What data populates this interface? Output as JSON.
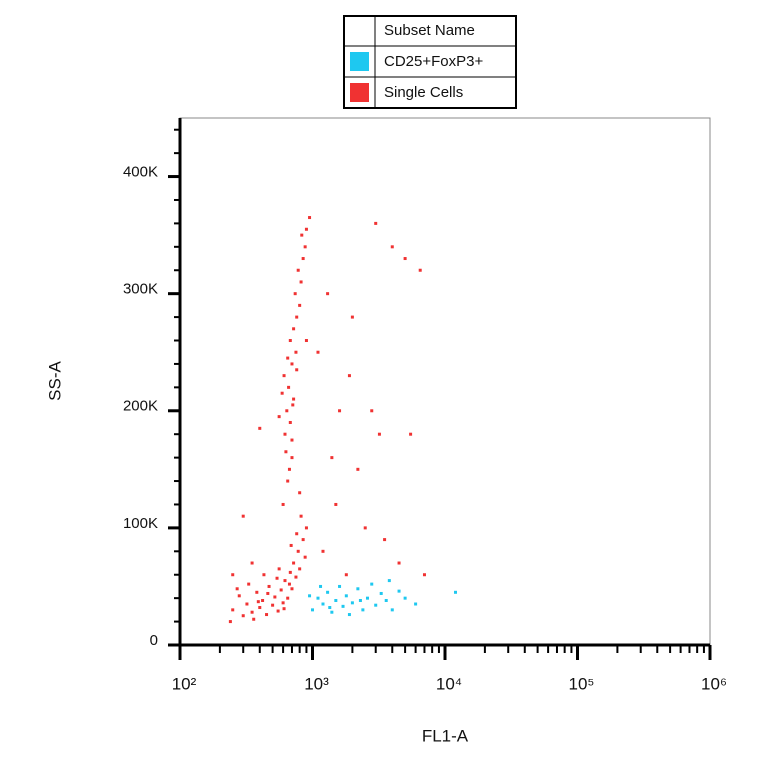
{
  "chart_data": {
    "type": "scatter",
    "legend_title": "Subset Name",
    "x_label": "FL1-A",
    "y_label": "SS-A",
    "x_log": true,
    "xlim": [
      100,
      1000000
    ],
    "ylim": [
      0,
      450000
    ],
    "xticks": [
      {
        "value": 100,
        "label": "10²"
      },
      {
        "value": 1000,
        "label": "10³"
      },
      {
        "value": 10000,
        "label": "10⁴"
      },
      {
        "value": 100000,
        "label": "10⁵"
      },
      {
        "value": 1000000,
        "label": "10⁶"
      }
    ],
    "xminorticks": [
      200,
      300,
      400,
      500,
      600,
      700,
      800,
      900,
      2000,
      3000,
      4000,
      5000,
      6000,
      7000,
      8000,
      9000,
      20000,
      30000,
      40000,
      50000,
      60000,
      70000,
      80000,
      90000,
      200000,
      300000,
      400000,
      500000,
      600000,
      700000,
      800000,
      900000
    ],
    "yticks": [
      0,
      {
        "value": 100000,
        "label": "100K"
      },
      {
        "value": 200000,
        "label": "200K"
      },
      {
        "value": 300000,
        "label": "300K"
      },
      {
        "value": 400000,
        "label": "400K"
      }
    ],
    "yminorticks": [
      20000,
      40000,
      60000,
      80000,
      120000,
      140000,
      160000,
      180000,
      220000,
      240000,
      260000,
      280000,
      320000,
      340000,
      360000,
      380000,
      420000,
      440000
    ],
    "series": [
      {
        "name": "CD25+FoxP3+",
        "color": "#1ec8f0",
        "x": [
          1000,
          1100,
          1200,
          1300,
          1400,
          1500,
          1600,
          1700,
          1800,
          2000,
          2200,
          2400,
          2600,
          2800,
          3000,
          3300,
          3600,
          4000,
          4500,
          5000,
          1150,
          1350,
          1900,
          2300,
          3800,
          950,
          12000,
          6000
        ],
        "values": [
          30000,
          40000,
          35000,
          45000,
          28000,
          38000,
          50000,
          33000,
          42000,
          36000,
          48000,
          30000,
          40000,
          52000,
          34000,
          44000,
          38000,
          30000,
          46000,
          40000,
          50000,
          32000,
          26000,
          38000,
          55000,
          42000,
          45000,
          35000
        ]
      },
      {
        "name": "Single Cells",
        "color": "#f03232",
        "x": [
          250,
          280,
          300,
          320,
          350,
          380,
          400,
          420,
          450,
          470,
          500,
          520,
          550,
          580,
          600,
          620,
          650,
          680,
          700,
          720,
          750,
          780,
          800,
          850,
          880,
          900,
          330,
          360,
          430,
          560,
          240,
          270,
          460,
          610,
          690,
          820,
          760,
          540,
          390,
          670,
          600,
          650,
          700,
          620,
          680,
          640,
          720,
          660,
          610,
          700,
          750,
          680,
          720,
          760,
          800,
          740,
          820,
          780,
          850,
          880,
          900,
          950,
          830,
          700,
          590,
          760,
          650,
          710,
          630,
          670,
          800,
          900,
          560,
          1200,
          1500,
          1800,
          2200,
          2800,
          3500,
          1100,
          1300,
          2000,
          4000,
          5000,
          6500,
          3000,
          1600,
          2500,
          4500,
          7000,
          1400,
          1900,
          3200,
          5500,
          300,
          350,
          250,
          400
        ],
        "values": [
          30000,
          42000,
          25000,
          35000,
          28000,
          45000,
          32000,
          38000,
          26000,
          50000,
          34000,
          41000,
          29000,
          47000,
          36000,
          55000,
          40000,
          62000,
          48000,
          70000,
          58000,
          80000,
          65000,
          90000,
          75000,
          100000,
          52000,
          22000,
          60000,
          65000,
          20000,
          48000,
          44000,
          31000,
          85000,
          110000,
          95000,
          57000,
          37000,
          52000,
          120000,
          140000,
          160000,
          180000,
          190000,
          200000,
          210000,
          220000,
          230000,
          240000,
          250000,
          260000,
          270000,
          280000,
          290000,
          300000,
          310000,
          320000,
          330000,
          340000,
          355000,
          365000,
          350000,
          175000,
          215000,
          235000,
          245000,
          205000,
          165000,
          150000,
          130000,
          260000,
          195000,
          80000,
          120000,
          60000,
          150000,
          200000,
          90000,
          250000,
          300000,
          280000,
          340000,
          330000,
          320000,
          360000,
          200000,
          100000,
          70000,
          60000,
          160000,
          230000,
          180000,
          180000,
          110000,
          70000,
          60000,
          185000
        ]
      }
    ]
  }
}
